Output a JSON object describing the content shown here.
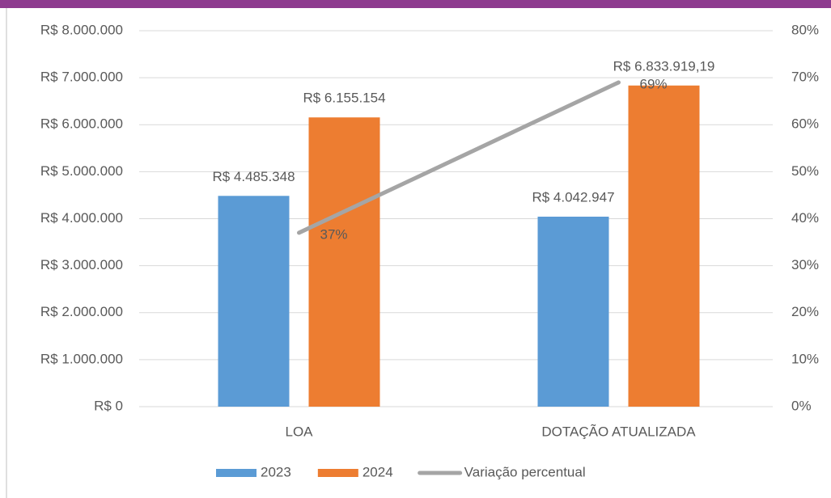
{
  "chart_data": {
    "type": "bar",
    "categories": [
      "LOA",
      "DOTAÇÃO ATUALIZADA"
    ],
    "series": [
      {
        "name": "2023",
        "color": "#5b9bd5",
        "values": [
          4485348,
          4042947
        ],
        "value_labels": [
          "R$ 4.485.348",
          "R$ 4.042.947"
        ]
      },
      {
        "name": "2024",
        "color": "#ed7d31",
        "values": [
          6155154,
          6833919.19
        ],
        "value_labels": [
          "R$ 6.155.154",
          "R$ 6.833.919,19"
        ]
      },
      {
        "name": "Variação percentual",
        "type": "line",
        "axis": "y2",
        "color": "#a5a5a5",
        "values": [
          37,
          69
        ],
        "value_labels": [
          "37%",
          "69%"
        ]
      }
    ],
    "ylim": [
      0,
      8000000
    ],
    "yticks": [
      {
        "value": 0,
        "label": "R$ 0"
      },
      {
        "value": 1000000,
        "label": "R$ 1.000.000"
      },
      {
        "value": 2000000,
        "label": "R$ 2.000.000"
      },
      {
        "value": 3000000,
        "label": "R$ 3.000.000"
      },
      {
        "value": 4000000,
        "label": "R$ 4.000.000"
      },
      {
        "value": 5000000,
        "label": "R$ 5.000.000"
      },
      {
        "value": 6000000,
        "label": "R$ 6.000.000"
      },
      {
        "value": 7000000,
        "label": "R$ 7.000.000"
      },
      {
        "value": 8000000,
        "label": "R$ 8.000.000"
      }
    ],
    "y2lim": [
      0,
      80
    ],
    "y2ticks": [
      {
        "value": 0,
        "label": "0%"
      },
      {
        "value": 10,
        "label": "10%"
      },
      {
        "value": 20,
        "label": "20%"
      },
      {
        "value": 30,
        "label": "30%"
      },
      {
        "value": 40,
        "label": "40%"
      },
      {
        "value": 50,
        "label": "50%"
      },
      {
        "value": 60,
        "label": "60%"
      },
      {
        "value": 70,
        "label": "70%"
      },
      {
        "value": 80,
        "label": "80%"
      }
    ],
    "grid": true,
    "legend": "bottom"
  }
}
